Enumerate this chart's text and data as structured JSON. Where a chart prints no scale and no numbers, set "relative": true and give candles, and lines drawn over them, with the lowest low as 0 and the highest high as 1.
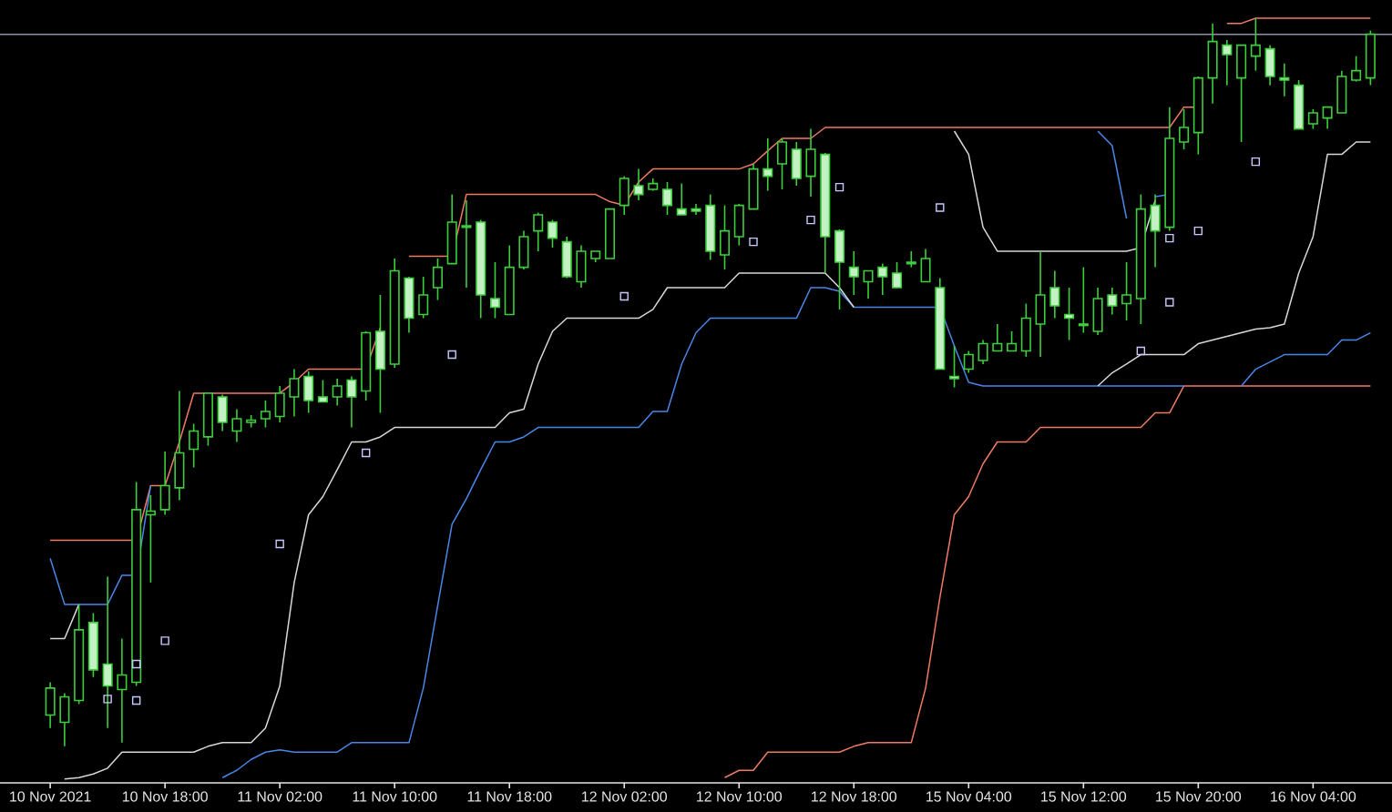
{
  "chart_data": {
    "type": "candlestick",
    "relative": true,
    "color": "#3ccf3c",
    "categories": [
      "10 Nov 2021",
      null,
      null,
      null,
      null,
      null,
      null,
      null,
      "10 Nov 18:00",
      null,
      null,
      null,
      null,
      null,
      null,
      null,
      "11 Nov 02:00",
      null,
      null,
      null,
      null,
      null,
      null,
      null,
      "11 Nov 10:00",
      null,
      null,
      null,
      null,
      null,
      null,
      null,
      "11 Nov 18:00",
      null,
      null,
      null,
      null,
      null,
      null,
      null,
      "12 Nov 02:00",
      null,
      null,
      null,
      null,
      null,
      null,
      null,
      "12 Nov 10:00",
      null,
      null,
      null,
      null,
      null,
      null,
      null,
      "12 Nov 18:00",
      null,
      null,
      null,
      null,
      null,
      null,
      null,
      "15 Nov 04:00",
      null,
      null,
      null,
      null,
      null,
      null,
      null,
      "15 Nov 12:00",
      null,
      null,
      null,
      null,
      null,
      null,
      null,
      "15 Nov 20:00",
      null,
      null,
      null,
      null,
      null,
      null,
      null,
      "16 Nov 04:00",
      null,
      null,
      null,
      null
    ],
    "ohlc": [
      [
        0.043,
        0.088,
        0.025,
        0.08
      ],
      [
        0.033,
        0.073,
        0,
        0.068
      ],
      [
        0.063,
        0.195,
        0.058,
        0.16
      ],
      [
        0.17,
        0.183,
        0.095,
        0.105
      ],
      [
        0.113,
        0.233,
        0.025,
        0.083
      ],
      [
        0.078,
        0.148,
        0.005,
        0.098
      ],
      [
        0.088,
        0.363,
        0.083,
        0.325
      ],
      [
        0.318,
        0.345,
        0.225,
        0.323
      ],
      [
        0.325,
        0.405,
        0.318,
        0.358
      ],
      [
        0.355,
        0.488,
        0.338,
        0.403
      ],
      [
        0.408,
        0.443,
        0.383,
        0.433
      ],
      [
        0.425,
        0.485,
        0.413,
        0.485
      ],
      [
        0.48,
        0.483,
        0.433,
        0.445
      ],
      [
        0.433,
        0.463,
        0.418,
        0.45
      ],
      [
        0.445,
        0.455,
        0.438,
        0.448
      ],
      [
        0.45,
        0.475,
        0.438,
        0.46
      ],
      [
        0.453,
        0.495,
        0.445,
        0.485
      ],
      [
        0.48,
        0.518,
        0.453,
        0.505
      ],
      [
        0.508,
        0.515,
        0.458,
        0.475
      ],
      [
        0.48,
        0.503,
        0.473,
        0.473
      ],
      [
        0.48,
        0.505,
        0.468,
        0.495
      ],
      [
        0.503,
        0.508,
        0.438,
        0.48
      ],
      [
        0.488,
        0.57,
        0.475,
        0.568
      ],
      [
        0.57,
        0.62,
        0.458,
        0.518
      ],
      [
        0.525,
        0.67,
        0.52,
        0.653
      ],
      [
        0.643,
        0.645,
        0.568,
        0.588
      ],
      [
        0.593,
        0.645,
        0.588,
        0.62
      ],
      [
        0.63,
        0.67,
        0.613,
        0.658
      ],
      [
        0.663,
        0.758,
        0.663,
        0.72
      ],
      [
        0.715,
        0.75,
        0.63,
        0.713
      ],
      [
        0.72,
        0.723,
        0.588,
        0.62
      ],
      [
        0.615,
        0.665,
        0.588,
        0.603
      ],
      [
        0.593,
        0.688,
        0.593,
        0.658
      ],
      [
        0.658,
        0.708,
        0.655,
        0.7
      ],
      [
        0.708,
        0.733,
        0.68,
        0.73
      ],
      [
        0.72,
        0.723,
        0.685,
        0.698
      ],
      [
        0.693,
        0.7,
        0.643,
        0.645
      ],
      [
        0.638,
        0.688,
        0.63,
        0.68
      ],
      [
        0.67,
        0.68,
        0.665,
        0.68
      ],
      [
        0.67,
        0.738,
        0.67,
        0.738
      ],
      [
        0.743,
        0.783,
        0.73,
        0.78
      ],
      [
        0.77,
        0.793,
        0.75,
        0.758
      ],
      [
        0.765,
        0.78,
        0.763,
        0.773
      ],
      [
        0.765,
        0.775,
        0.73,
        0.743
      ],
      [
        0.738,
        0.773,
        0.73,
        0.73
      ],
      [
        0.738,
        0.745,
        0.73,
        0.735
      ],
      [
        0.743,
        0.758,
        0.668,
        0.68
      ],
      [
        0.675,
        0.743,
        0.655,
        0.708
      ],
      [
        0.7,
        0.745,
        0.688,
        0.743
      ],
      [
        0.738,
        0.8,
        0.738,
        0.793
      ],
      [
        0.793,
        0.835,
        0.763,
        0.783
      ],
      [
        0.8,
        0.835,
        0.765,
        0.83
      ],
      [
        0.82,
        0.83,
        0.77,
        0.78
      ],
      [
        0.783,
        0.848,
        0.755,
        0.82
      ],
      [
        0.813,
        0.815,
        0.65,
        0.7
      ],
      [
        0.708,
        0.71,
        0.6,
        0.665
      ],
      [
        0.658,
        0.68,
        0.62,
        0.645
      ],
      [
        0.638,
        0.653,
        0.615,
        0.653
      ],
      [
        0.658,
        0.663,
        0.62,
        0.645
      ],
      [
        0.65,
        0.665,
        0.63,
        0.63
      ],
      [
        0.665,
        0.68,
        0.658,
        0.663
      ],
      [
        0.638,
        0.683,
        0.638,
        0.67
      ],
      [
        0.63,
        0.643,
        0.518,
        0.518
      ],
      [
        0.508,
        0.55,
        0.493,
        0.505
      ],
      [
        0.518,
        0.543,
        0.513,
        0.538
      ],
      [
        0.53,
        0.558,
        0.525,
        0.553
      ],
      [
        0.543,
        0.58,
        0.543,
        0.553
      ],
      [
        0.543,
        0.57,
        0.543,
        0.553
      ],
      [
        0.543,
        0.608,
        0.535,
        0.588
      ],
      [
        0.58,
        0.68,
        0.535,
        0.62
      ],
      [
        0.63,
        0.653,
        0.588,
        0.605
      ],
      [
        0.593,
        0.63,
        0.558,
        0.588
      ],
      [
        0.58,
        0.658,
        0.568,
        0.578
      ],
      [
        0.57,
        0.63,
        0.565,
        0.615
      ],
      [
        0.62,
        0.63,
        0.593,
        0.605
      ],
      [
        0.608,
        0.665,
        0.585,
        0.62
      ],
      [
        0.615,
        0.758,
        0.58,
        0.738
      ],
      [
        0.743,
        0.758,
        0.658,
        0.708
      ],
      [
        0.713,
        0.878,
        0.708,
        0.835
      ],
      [
        0.83,
        0.875,
        0.82,
        0.85
      ],
      [
        0.843,
        0.92,
        0.813,
        0.918
      ],
      [
        0.918,
        0.993,
        0.883,
        0.968
      ],
      [
        0.963,
        0.97,
        0.908,
        0.95
      ],
      [
        0.918,
        0.963,
        0.83,
        0.963
      ],
      [
        0.948,
        1,
        0.928,
        0.963
      ],
      [
        0.958,
        0.963,
        0.908,
        0.92
      ],
      [
        0.918,
        0.938,
        0.893,
        0.915
      ],
      [
        0.908,
        0.915,
        0.848,
        0.848
      ],
      [
        0.855,
        0.875,
        0.848,
        0.87
      ],
      [
        0.863,
        0.878,
        0.848,
        0.878
      ],
      [
        0.87,
        0.928,
        0.87,
        0.92
      ],
      [
        0.915,
        0.948,
        0.913,
        0.928
      ],
      [
        0.918,
        0.983,
        0.908,
        0.978
      ]
    ],
    "series": [
      {
        "type": "line",
        "color": "#f07a64",
        "values": [
          0.283,
          0.283,
          0.283,
          0.283,
          0.283,
          0.283,
          0.283,
          0.358,
          0.358,
          0.418,
          0.485,
          0.485,
          0.485,
          0.485,
          0.485,
          0.485,
          0.485,
          0.5,
          0.518,
          0.518,
          0.518,
          0.518,
          0.518,
          0.575,
          null,
          0.673,
          0.673,
          0.673,
          0.673,
          0.758,
          0.758,
          0.758,
          0.758,
          0.758,
          0.758,
          0.758,
          0.758,
          0.758,
          0.758,
          0.748,
          0.743,
          0.775,
          0.793,
          0.793,
          0.793,
          0.793,
          0.793,
          0.793,
          0.793,
          0.8,
          0.818,
          0.835,
          0.835,
          0.835,
          0.85,
          0.85,
          0.85,
          0.85,
          0.85,
          0.85,
          0.85,
          0.85,
          0.85,
          0.85,
          0.85,
          0.85,
          0.85,
          0.85,
          0.85,
          0.85,
          0.85,
          0.85,
          0.85,
          0.85,
          0.85,
          0.85,
          0.85,
          0.85,
          0.85,
          0.878,
          0.878,
          null,
          0.993,
          0.993,
          1,
          1,
          1,
          1,
          1,
          1,
          1,
          1,
          1
        ]
      },
      {
        "type": "line",
        "color": "#f07a64",
        "values": [
          null,
          null,
          null,
          null,
          null,
          null,
          null,
          null,
          null,
          null,
          null,
          null,
          null,
          null,
          null,
          null,
          null,
          null,
          null,
          null,
          null,
          null,
          null,
          null,
          null,
          null,
          null,
          null,
          null,
          null,
          null,
          null,
          null,
          null,
          null,
          null,
          null,
          null,
          null,
          null,
          null,
          null,
          null,
          null,
          null,
          null,
          null,
          -0.043,
          -0.033,
          -0.033,
          -0.008,
          -0.008,
          -0.008,
          -0.008,
          -0.008,
          -0.008,
          0,
          0.005,
          0.005,
          0.005,
          0.005,
          0.08,
          0.205,
          0.318,
          0.343,
          0.388,
          0.418,
          0.418,
          0.418,
          0.438,
          0.438,
          0.438,
          0.438,
          0.438,
          0.438,
          0.438,
          0.438,
          0.458,
          0.458,
          0.495,
          0.495,
          0.495,
          0.495,
          0.495,
          0.495,
          0.495,
          0.495,
          0.495,
          0.495,
          0.495,
          0.495,
          0.495,
          0.495
        ]
      },
      {
        "type": "line",
        "color": "#4a86e8",
        "values": [
          0.258,
          0.195,
          0.195,
          0.195,
          0.195,
          0.235,
          0.235,
          0.358,
          null,
          null,
          null,
          null,
          null,
          null,
          null,
          null,
          null,
          null,
          null,
          null,
          null,
          null,
          null,
          null,
          null,
          null,
          null,
          null,
          null,
          null,
          null,
          null,
          null,
          null,
          null,
          null,
          null,
          null,
          null,
          null,
          null,
          null,
          null,
          null,
          null,
          null,
          null,
          null,
          null,
          null,
          null,
          null,
          null,
          null,
          null,
          null,
          null,
          null,
          null,
          null,
          null,
          null,
          null,
          null,
          null,
          null,
          null,
          null,
          null,
          null,
          null,
          null,
          null,
          null,
          null,
          null,
          null,
          null,
          null,
          null,
          null,
          null,
          null,
          null,
          null,
          null,
          null,
          null,
          null,
          null,
          null,
          null,
          null
        ]
      },
      {
        "type": "line",
        "color": "#4a86e8",
        "values": [
          null,
          null,
          null,
          null,
          null,
          null,
          null,
          null,
          null,
          null,
          null,
          null,
          -0.043,
          -0.033,
          -0.018,
          -0.008,
          -0.005,
          -0.008,
          -0.008,
          -0.008,
          -0.008,
          0.005,
          0.005,
          0.005,
          0.005,
          0.005,
          0.08,
          0.193,
          0.305,
          0.34,
          0.38,
          0.418,
          0.418,
          0.425,
          0.438,
          0.438,
          0.438,
          0.438,
          0.438,
          0.438,
          0.438,
          0.438,
          0.46,
          0.46,
          0.525,
          0.568,
          0.588,
          0.588,
          0.588,
          0.588,
          0.588,
          0.588,
          0.588,
          0.63,
          0.63,
          0.625,
          0.603,
          0.603,
          0.603,
          0.603,
          0.603,
          0.603,
          0.603,
          0.55,
          0.5,
          0.495,
          0.495,
          0.495,
          0.495,
          0.495,
          0.495,
          0.495,
          0.495,
          0.495,
          0.495,
          0.495,
          0.495,
          0.495,
          0.495,
          0.495,
          null,
          null,
          null,
          0.495,
          0.518,
          0.528,
          0.538,
          0.538,
          0.538,
          0.538,
          0.558,
          0.558,
          0.568
        ]
      },
      {
        "type": "line",
        "color": "#4a86e8",
        "values": [
          null,
          null,
          null,
          null,
          null,
          null,
          null,
          null,
          null,
          null,
          null,
          null,
          null,
          null,
          null,
          null,
          null,
          null,
          null,
          null,
          null,
          null,
          null,
          null,
          null,
          null,
          null,
          null,
          null,
          null,
          null,
          null,
          null,
          null,
          null,
          null,
          null,
          null,
          null,
          null,
          null,
          null,
          null,
          null,
          null,
          null,
          null,
          null,
          null,
          null,
          null,
          null,
          null,
          null,
          null,
          null,
          null,
          null,
          null,
          null,
          null,
          null,
          null,
          null,
          null,
          null,
          null,
          null,
          null,
          null,
          null,
          null,
          null,
          0.845,
          0.825,
          0.725,
          null,
          0.755,
          0.758,
          null,
          null,
          null,
          null,
          null,
          null,
          null,
          null,
          null,
          null,
          null,
          null,
          null,
          null
        ]
      },
      {
        "type": "line",
        "color": "#d8d8d8",
        "values": [
          0.148,
          0.148,
          0.195,
          null,
          null,
          null,
          null,
          null,
          null,
          null,
          null,
          null,
          null,
          null,
          null,
          null,
          null,
          null,
          null,
          null,
          null,
          null,
          null,
          null,
          null,
          null,
          null,
          null,
          null,
          null,
          null,
          null,
          null,
          null,
          null,
          null,
          null,
          null,
          null,
          null,
          null,
          null,
          null,
          null,
          null,
          null,
          null,
          null,
          null,
          null,
          null,
          null,
          null,
          null,
          null,
          null,
          null,
          null,
          null,
          null,
          null,
          null,
          null,
          null,
          null,
          null,
          null,
          null,
          null,
          null,
          null,
          null,
          null,
          null,
          null,
          null,
          null,
          null,
          null,
          null,
          null,
          null,
          null,
          null,
          null,
          null,
          null,
          null,
          null,
          null,
          null,
          null,
          null
        ]
      },
      {
        "type": "line",
        "color": "#d8d8d8",
        "values": [
          null,
          -0.045,
          -0.043,
          -0.038,
          -0.03,
          -0.008,
          -0.008,
          -0.008,
          -0.008,
          -0.008,
          -0.008,
          0,
          0.005,
          0.005,
          0.005,
          0.025,
          0.083,
          0.225,
          0.318,
          0.343,
          0.38,
          0.418,
          0.418,
          0.425,
          0.438,
          0.438,
          0.438,
          0.438,
          0.438,
          0.438,
          0.438,
          0.438,
          0.458,
          0.463,
          0.525,
          0.57,
          0.588,
          0.588,
          0.588,
          0.588,
          0.588,
          0.588,
          0.6,
          0.63,
          0.63,
          0.63,
          0.63,
          0.63,
          0.65,
          0.65,
          0.65,
          0.65,
          0.65,
          0.65,
          0.65,
          0.63,
          0.603,
          null,
          null,
          null,
          null,
          null,
          null,
          null,
          null,
          null,
          null,
          null,
          null,
          null,
          null,
          null,
          null,
          null,
          null,
          null,
          null,
          null,
          null,
          null,
          null,
          null,
          null,
          null,
          null,
          null,
          null,
          null,
          null,
          null,
          null,
          null,
          null
        ]
      },
      {
        "type": "line",
        "color": "#d8d8d8",
        "values": [
          null,
          null,
          null,
          null,
          null,
          null,
          null,
          null,
          null,
          null,
          null,
          null,
          null,
          null,
          null,
          null,
          null,
          null,
          null,
          null,
          null,
          null,
          null,
          null,
          null,
          null,
          null,
          null,
          null,
          null,
          null,
          null,
          null,
          null,
          null,
          null,
          null,
          null,
          null,
          null,
          null,
          null,
          null,
          null,
          null,
          null,
          null,
          null,
          null,
          null,
          null,
          null,
          null,
          null,
          null,
          null,
          null,
          null,
          null,
          null,
          null,
          null,
          null,
          0.845,
          0.813,
          0.713,
          0.68,
          0.68,
          0.68,
          0.68,
          0.68,
          0.68,
          0.68,
          0.68,
          0.68,
          0.68,
          0.685,
          0.75,
          null,
          null,
          null,
          null,
          null,
          null,
          null,
          null,
          null,
          null,
          null,
          null,
          null,
          null,
          null
        ]
      },
      {
        "type": "line",
        "color": "#d8d8d8",
        "values": [
          null,
          null,
          null,
          null,
          null,
          null,
          null,
          null,
          null,
          null,
          null,
          null,
          null,
          null,
          null,
          null,
          null,
          null,
          null,
          null,
          null,
          null,
          null,
          null,
          null,
          null,
          null,
          null,
          null,
          null,
          null,
          null,
          null,
          null,
          null,
          null,
          null,
          null,
          null,
          null,
          null,
          null,
          null,
          null,
          null,
          null,
          null,
          null,
          null,
          null,
          null,
          null,
          null,
          null,
          null,
          null,
          null,
          null,
          null,
          null,
          null,
          null,
          null,
          null,
          null,
          null,
          null,
          null,
          null,
          null,
          null,
          null,
          null,
          0.495,
          0.513,
          0.525,
          0.538,
          0.538,
          0.538,
          0.538,
          0.553,
          0.558,
          0.563,
          0.568,
          0.573,
          0.575,
          0.58,
          0.65,
          0.7,
          0.813,
          0.813,
          0.83,
          0.83
        ]
      },
      {
        "type": "scatter",
        "marker": "square",
        "color": "#c8c8ff",
        "values": [
          null,
          null,
          null,
          null,
          0.065,
          null,
          0.113,
          null,
          0.145,
          null,
          null,
          null,
          null,
          null,
          null,
          null,
          0.278,
          null,
          null,
          null,
          null,
          null,
          0.403,
          null,
          null,
          null,
          null,
          null,
          0.538,
          null,
          null,
          null,
          null,
          null,
          null,
          null,
          null,
          null,
          null,
          null,
          0.618,
          null,
          null,
          null,
          null,
          null,
          null,
          null,
          null,
          0.693,
          null,
          null,
          null,
          0.723,
          null,
          0.768,
          null,
          null,
          null,
          null,
          null,
          null,
          0.74,
          null,
          null,
          null,
          null,
          null,
          null,
          null,
          null,
          null,
          null,
          null,
          null,
          null,
          0.543,
          null,
          0.698,
          null,
          0.708,
          null,
          null,
          null,
          0.803,
          null,
          null,
          null,
          null,
          null,
          null,
          null,
          null
        ]
      },
      {
        "type": "scatter",
        "marker": "square",
        "color": "#c8c8ff",
        "values": [
          null,
          null,
          null,
          null,
          null,
          null,
          0.063,
          null,
          null,
          null,
          null,
          null,
          null,
          null,
          null,
          null,
          null,
          null,
          null,
          null,
          null,
          null,
          null,
          null,
          null,
          null,
          null,
          null,
          null,
          null,
          null,
          null,
          null,
          null,
          null,
          null,
          null,
          null,
          null,
          null,
          null,
          null,
          null,
          null,
          null,
          null,
          null,
          null,
          null,
          null,
          null,
          null,
          null,
          null,
          null,
          null,
          null,
          null,
          null,
          null,
          null,
          null,
          null,
          null,
          null,
          null,
          null,
          null,
          null,
          null,
          null,
          null,
          null,
          null,
          null,
          null,
          null,
          null,
          0.61,
          null,
          null,
          null,
          null,
          null,
          null,
          null,
          null,
          null,
          null,
          null,
          null,
          null,
          null
        ]
      }
    ],
    "ref_lines": [
      {
        "axis": "y",
        "value": 0.978,
        "color": "#8c92a8"
      }
    ]
  }
}
